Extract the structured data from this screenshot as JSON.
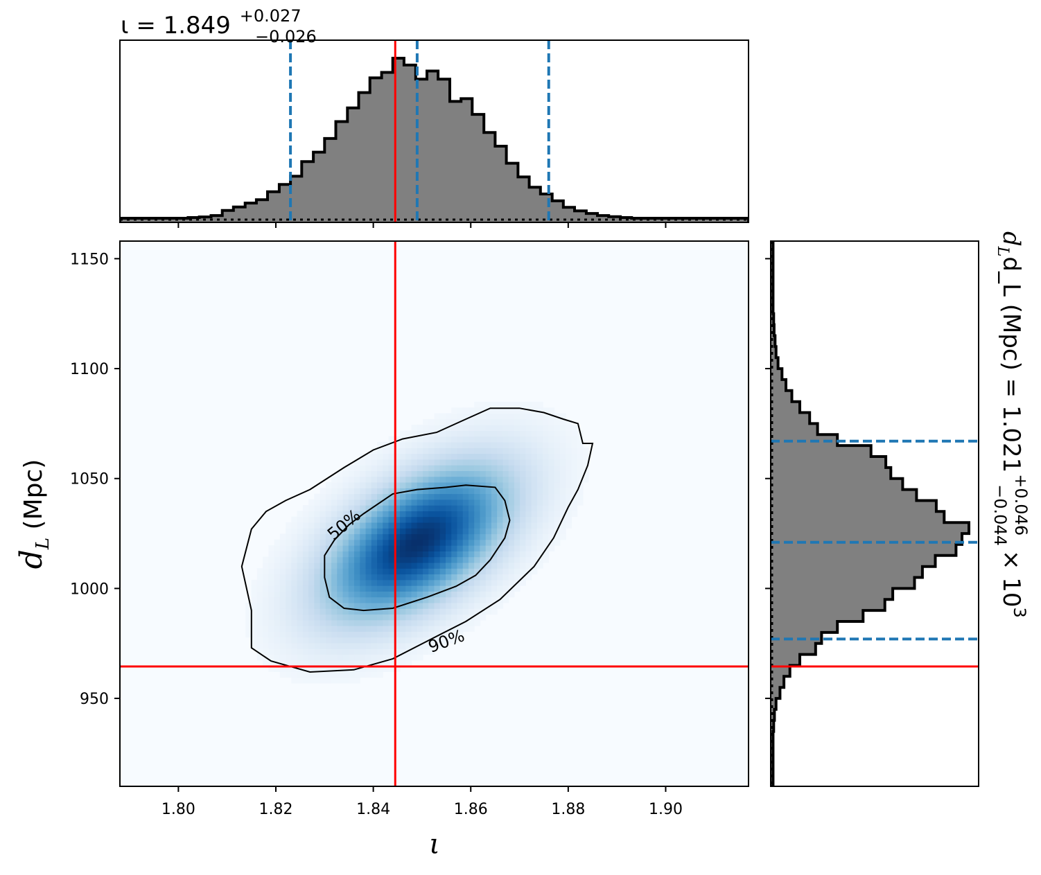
{
  "chart_data": {
    "type": "corner",
    "joint": {
      "type": "heatmap",
      "x_param": "iota",
      "y_param": "d_L",
      "xlabel": "ι",
      "ylabel": "d_L (Mpc)",
      "xlim": [
        1.788,
        1.917
      ],
      "ylim": [
        910,
        1158
      ],
      "xticks": [
        1.8,
        1.82,
        1.84,
        1.86,
        1.88,
        1.9
      ],
      "xtick_labels": [
        "1.80",
        "1.82",
        "1.84",
        "1.86",
        "1.88",
        "1.90"
      ],
      "yticks": [
        950,
        1000,
        1050,
        1100,
        1150
      ],
      "ytick_labels": [
        "950",
        "1000",
        "1050",
        "1100",
        "1150"
      ],
      "colormap": "Blues",
      "density_peak": {
        "x": 1.849,
        "y": 1021
      },
      "density_correlation": 0.55,
      "contours": [
        {
          "label": "50%",
          "points": [
            [
              1.838,
              1034
            ],
            [
              1.844,
              1043
            ],
            [
              1.849,
              1045
            ],
            [
              1.855,
              1046
            ],
            [
              1.859,
              1047
            ],
            [
              1.865,
              1046
            ],
            [
              1.867,
              1040
            ],
            [
              1.868,
              1031
            ],
            [
              1.867,
              1023
            ],
            [
              1.864,
              1013
            ],
            [
              1.861,
              1006
            ],
            [
              1.857,
              1001
            ],
            [
              1.851,
              996
            ],
            [
              1.844,
              991
            ],
            [
              1.838,
              990
            ],
            [
              1.834,
              991
            ],
            [
              1.831,
              996
            ],
            [
              1.83,
              1005
            ],
            [
              1.83,
              1015
            ],
            [
              1.832,
              1022
            ],
            [
              1.835,
              1029
            ]
          ]
        },
        {
          "label": "90%",
          "points": [
            [
              1.827,
              1045
            ],
            [
              1.834,
              1055
            ],
            [
              1.84,
              1063
            ],
            [
              1.846,
              1068
            ],
            [
              1.853,
              1071
            ],
            [
              1.859,
              1077
            ],
            [
              1.864,
              1082
            ],
            [
              1.87,
              1082
            ],
            [
              1.875,
              1080
            ],
            [
              1.879,
              1077
            ],
            [
              1.882,
              1075
            ],
            [
              1.883,
              1066
            ],
            [
              1.885,
              1066
            ],
            [
              1.884,
              1056
            ],
            [
              1.882,
              1045
            ],
            [
              1.88,
              1037
            ],
            [
              1.877,
              1023
            ],
            [
              1.873,
              1010
            ],
            [
              1.866,
              995
            ],
            [
              1.859,
              985
            ],
            [
              1.851,
              976
            ],
            [
              1.844,
              968
            ],
            [
              1.836,
              963
            ],
            [
              1.827,
              962
            ],
            [
              1.819,
              967
            ],
            [
              1.815,
              973
            ],
            [
              1.815,
              990
            ],
            [
              1.813,
              1010
            ],
            [
              1.815,
              1027
            ],
            [
              1.818,
              1035
            ],
            [
              1.822,
              1040
            ]
          ]
        }
      ],
      "contour_labels": [
        {
          "text": "50%",
          "x": 1.834,
          "y": 1029,
          "angle": -40
        },
        {
          "text": "90%",
          "x": 1.855,
          "y": 976,
          "angle": -20
        }
      ],
      "truth": {
        "x": 1.8445,
        "y": 964.5
      }
    },
    "marginal_x": {
      "type": "histogram",
      "param": "iota",
      "title": "ι = 1.849^{+0.027}_{-0.026}",
      "title_main": "ι = 1.849",
      "title_sup": "+0.027",
      "title_sub": "−0.026",
      "bin_edges": [
        1.788,
        1.7903,
        1.7927,
        1.795,
        1.7973,
        1.7997,
        1.802,
        1.8043,
        1.8067,
        1.809,
        1.8113,
        1.8137,
        1.816,
        1.8183,
        1.8207,
        1.823,
        1.8253,
        1.8277,
        1.83,
        1.8323,
        1.8347,
        1.837,
        1.8393,
        1.8417,
        1.844,
        1.8463,
        1.8487,
        1.851,
        1.8533,
        1.8557,
        1.858,
        1.8603,
        1.8627,
        1.865,
        1.8673,
        1.8697,
        1.872,
        1.8743,
        1.8767,
        1.879,
        1.8813,
        1.8837,
        1.886,
        1.8883,
        1.8907,
        1.893,
        1.8953,
        1.8977,
        1.9,
        1.9023,
        1.9047,
        1.907,
        1.9093,
        1.9117,
        1.914,
        1.917
      ],
      "counts": [
        0.008,
        0.008,
        0.008,
        0.008,
        0.008,
        0.008,
        0.012,
        0.016,
        0.024,
        0.054,
        0.074,
        0.097,
        0.117,
        0.163,
        0.206,
        0.254,
        0.34,
        0.395,
        0.475,
        0.574,
        0.654,
        0.744,
        0.83,
        0.862,
        0.945,
        0.905,
        0.822,
        0.87,
        0.822,
        0.692,
        0.708,
        0.616,
        0.51,
        0.43,
        0.33,
        0.25,
        0.19,
        0.15,
        0.11,
        0.072,
        0.051,
        0.036,
        0.024,
        0.017,
        0.012,
        0.008,
        0.008,
        0.008,
        0.008,
        0.008,
        0.008,
        0.008,
        0.008,
        0.008,
        0.008
      ],
      "quantiles": [
        1.823,
        1.849,
        1.876
      ],
      "truth": 1.8445,
      "color": "#808080",
      "edge_color": "#000000"
    },
    "marginal_y": {
      "type": "histogram",
      "param": "d_L",
      "orientation": "horizontal",
      "title": "d_L (Mpc) = 1.021^{+0.046}_{-0.044} × 10^3",
      "title_main": "d_L (Mpc) = 1.021",
      "title_sup": "+0.046",
      "title_sub": "−0.044",
      "title_tail": "× 10",
      "title_exp": "3",
      "bin_edges": [
        910,
        915,
        920,
        925,
        930,
        935,
        940,
        945,
        950,
        955,
        960,
        965,
        970,
        975,
        980,
        985,
        990,
        995,
        1000,
        1005,
        1010,
        1015,
        1020,
        1025,
        1030,
        1035,
        1040,
        1045,
        1050,
        1055,
        1060,
        1065,
        1070,
        1075,
        1080,
        1085,
        1090,
        1095,
        1100,
        1105,
        1110,
        1115,
        1120,
        1125,
        1130,
        1135,
        1140,
        1145,
        1150,
        1155,
        1158
      ],
      "counts": [
        0.005,
        0.005,
        0.005,
        0.005,
        0.005,
        0.008,
        0.012,
        0.02,
        0.04,
        0.06,
        0.09,
        0.14,
        0.22,
        0.25,
        0.33,
        0.46,
        0.57,
        0.61,
        0.72,
        0.76,
        0.825,
        0.93,
        0.96,
        0.995,
        0.87,
        0.83,
        0.73,
        0.66,
        0.6,
        0.575,
        0.5,
        0.33,
        0.23,
        0.19,
        0.14,
        0.1,
        0.07,
        0.05,
        0.03,
        0.02,
        0.015,
        0.01,
        0.008,
        0.005,
        0.005,
        0.005,
        0.005,
        0.005,
        0.005,
        0.005
      ],
      "quantiles": [
        977,
        1021,
        1067
      ],
      "truth": 964.5,
      "color": "#808080",
      "edge_color": "#000000"
    },
    "colors": {
      "truth": "#ff0000",
      "quantile": "#1f77b4",
      "hist_fill": "#808080",
      "contour": "#000000"
    },
    "grid": false,
    "legend": "none"
  }
}
